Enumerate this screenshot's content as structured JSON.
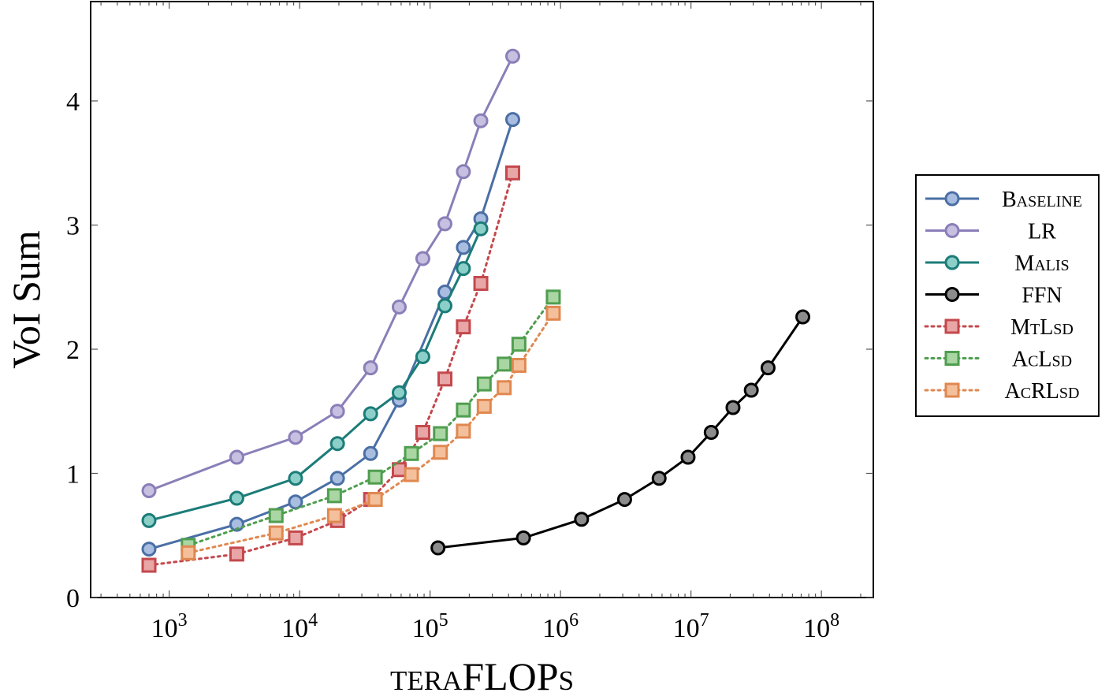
{
  "chart_data": {
    "type": "line",
    "xlabel": "teraFLOPs",
    "ylabel": "VoI Sum",
    "x_scale": "log",
    "xlim": [
      250,
      250000000
    ],
    "ylim": [
      0,
      4.8
    ],
    "x_ticks": [
      {
        "value": 1000,
        "label": "10",
        "exp": "3"
      },
      {
        "value": 10000,
        "label": "10",
        "exp": "4"
      },
      {
        "value": 100000,
        "label": "10",
        "exp": "5"
      },
      {
        "value": 1000000,
        "label": "10",
        "exp": "6"
      },
      {
        "value": 10000000,
        "label": "10",
        "exp": "7"
      },
      {
        "value": 100000000,
        "label": "10",
        "exp": "8"
      }
    ],
    "y_ticks": [
      {
        "value": 0,
        "label": "0"
      },
      {
        "value": 1,
        "label": "1"
      },
      {
        "value": 2,
        "label": "2"
      },
      {
        "value": 3,
        "label": "3"
      },
      {
        "value": 4,
        "label": "4"
      }
    ],
    "grid": false,
    "legend_position": "right-outside",
    "series": [
      {
        "name": "Baseline",
        "color": "#4a6fa5",
        "fill": "#a9bde0",
        "marker": "circle",
        "dash": "solid",
        "x": [
          700,
          3300,
          9300,
          19500,
          35000,
          58000,
          130000,
          180000,
          245000,
          430000
        ],
        "y": [
          0.39,
          0.59,
          0.77,
          0.96,
          1.16,
          1.59,
          2.46,
          2.82,
          3.05,
          3.85
        ]
      },
      {
        "name": "LR",
        "color": "#8a7fb8",
        "fill": "#c7c0e0",
        "marker": "circle",
        "dash": "solid",
        "x": [
          700,
          3300,
          9300,
          19500,
          35000,
          58000,
          88000,
          130000,
          180000,
          245000,
          430000
        ],
        "y": [
          0.86,
          1.13,
          1.29,
          1.5,
          1.85,
          2.34,
          2.73,
          3.01,
          3.43,
          3.84,
          4.36
        ]
      },
      {
        "name": "Malis",
        "color": "#1b7c78",
        "fill": "#8ccfc9",
        "marker": "circle",
        "dash": "solid",
        "x": [
          700,
          3300,
          9300,
          19500,
          35000,
          58000,
          88000,
          130000,
          180000,
          245000
        ],
        "y": [
          0.62,
          0.8,
          0.96,
          1.24,
          1.48,
          1.65,
          1.94,
          2.35,
          2.65,
          2.97
        ]
      },
      {
        "name": "FFN",
        "color": "#000000",
        "fill": "#8c8c8c",
        "marker": "circle",
        "dash": "solid",
        "x": [
          115000,
          520000,
          1450000,
          3100000,
          5700000,
          9500000,
          14300000,
          21000000,
          29000000,
          39000000,
          72000000
        ],
        "y": [
          0.4,
          0.48,
          0.63,
          0.79,
          0.96,
          1.13,
          1.33,
          1.53,
          1.67,
          1.85,
          2.26
        ]
      },
      {
        "name": "MtLsd",
        "color": "#c4484c",
        "fill": "#e8a6a6",
        "marker": "square",
        "dash": "dotted",
        "x": [
          700,
          3300,
          9300,
          19500,
          35000,
          58000,
          88000,
          130000,
          180000,
          245000,
          430000
        ],
        "y": [
          0.26,
          0.35,
          0.48,
          0.62,
          0.79,
          1.03,
          1.33,
          1.76,
          2.18,
          2.53,
          3.42
        ]
      },
      {
        "name": "AcLsd",
        "color": "#4f9e4f",
        "fill": "#a9d6a3",
        "marker": "square",
        "dash": "dotted",
        "x": [
          1400,
          6600,
          18500,
          38000,
          72000,
          120000,
          180000,
          260000,
          370000,
          480000,
          880000
        ],
        "y": [
          0.42,
          0.66,
          0.82,
          0.97,
          1.16,
          1.32,
          1.51,
          1.72,
          1.88,
          2.04,
          2.42
        ]
      },
      {
        "name": "AcRLsd",
        "color": "#e08850",
        "fill": "#f4c09c",
        "marker": "square",
        "dash": "dotted",
        "x": [
          1400,
          6600,
          18500,
          38000,
          72000,
          120000,
          180000,
          260000,
          370000,
          480000,
          880000
        ],
        "y": [
          0.36,
          0.52,
          0.66,
          0.79,
          0.99,
          1.17,
          1.34,
          1.54,
          1.69,
          1.87,
          2.29
        ]
      }
    ]
  }
}
